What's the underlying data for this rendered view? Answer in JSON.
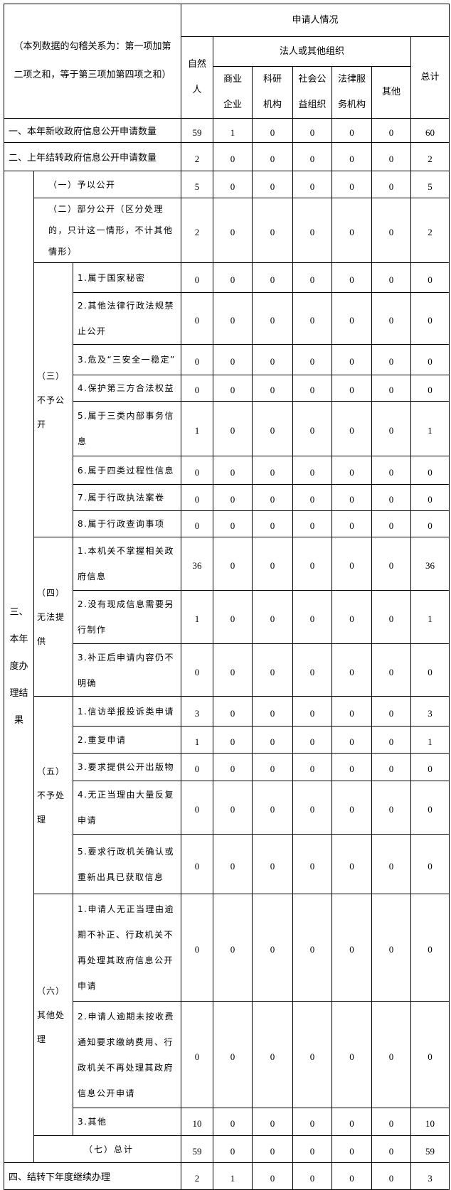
{
  "header": {
    "note": "（本列数据的勾稽关系为：第一项加第二项之和，等于第三项加第四项之和）",
    "applicant": "申请人情况",
    "natural_person": "自然人",
    "legal_org": "法人或其他组织",
    "total": "总计",
    "org_types": [
      "商业企业",
      "科研机构",
      "社会公益组织",
      "法律服务机构",
      "其他"
    ]
  },
  "row1": {
    "label": "一、本年新收政府信息公开申请数量",
    "values": [
      59,
      1,
      0,
      0,
      0,
      0,
      60
    ]
  },
  "row2": {
    "label": "二、上年结转政府信息公开申请数量",
    "values": [
      2,
      0,
      0,
      0,
      0,
      0,
      2
    ]
  },
  "section3": {
    "label": "三、本年度办理结果",
    "groups": [
      {
        "label": "（一）予以公开",
        "values": [
          5,
          0,
          0,
          0,
          0,
          0,
          5
        ]
      },
      {
        "label": "（二）部分公开（区分处理的，只计这一情形，不计其他情形）",
        "values": [
          2,
          0,
          0,
          0,
          0,
          0,
          2
        ]
      },
      {
        "label": "（三）不予公开",
        "items": [
          {
            "label": "1.属于国家秘密",
            "values": [
              0,
              0,
              0,
              0,
              0,
              0,
              0
            ]
          },
          {
            "label": "2.其他法律行政法规禁止公开",
            "values": [
              0,
              0,
              0,
              0,
              0,
              0,
              0
            ]
          },
          {
            "label": "3.危及“三安全一稳定”",
            "values": [
              0,
              0,
              0,
              0,
              0,
              0,
              0
            ]
          },
          {
            "label": "4.保护第三方合法权益",
            "values": [
              0,
              0,
              0,
              0,
              0,
              0,
              0
            ]
          },
          {
            "label": "5.属于三类内部事务信息",
            "values": [
              1,
              0,
              0,
              0,
              0,
              0,
              1
            ]
          },
          {
            "label": "6.属于四类过程性信息",
            "values": [
              0,
              0,
              0,
              0,
              0,
              0,
              0
            ]
          },
          {
            "label": "7.属于行政执法案卷",
            "values": [
              0,
              0,
              0,
              0,
              0,
              0,
              0
            ]
          },
          {
            "label": "8.属于行政查询事项",
            "values": [
              0,
              0,
              0,
              0,
              0,
              0,
              0
            ]
          }
        ]
      },
      {
        "label": "（四）无法提供",
        "items": [
          {
            "label": "1.本机关不掌握相关政府信息",
            "values": [
              36,
              0,
              0,
              0,
              0,
              0,
              36
            ]
          },
          {
            "label": "2.没有现成信息需要另行制作",
            "values": [
              1,
              0,
              0,
              0,
              0,
              0,
              1
            ]
          },
          {
            "label": "3.补正后申请内容仍不明确",
            "values": [
              0,
              0,
              0,
              0,
              0,
              0,
              0
            ]
          }
        ]
      },
      {
        "label": "（五）不予处理",
        "items": [
          {
            "label": "1.信访举报投诉类申请",
            "values": [
              3,
              0,
              0,
              0,
              0,
              0,
              3
            ]
          },
          {
            "label": "2.重复申请",
            "values": [
              1,
              0,
              0,
              0,
              0,
              0,
              1
            ]
          },
          {
            "label": "3.要求提供公开出版物",
            "values": [
              0,
              0,
              0,
              0,
              0,
              0,
              0
            ]
          },
          {
            "label": "4.无正当理由大量反复申请",
            "values": [
              0,
              0,
              0,
              0,
              0,
              0,
              0
            ]
          },
          {
            "label": "5.要求行政机关确认或重新出具已获取信息",
            "values": [
              0,
              0,
              0,
              0,
              0,
              0,
              0
            ]
          }
        ]
      },
      {
        "label": "（六）其他处理",
        "items": [
          {
            "label": "1.申请人无正当理由逾期不补正、行政机关不再处理其政府信息公开申请",
            "values": [
              0,
              0,
              0,
              0,
              0,
              0,
              0
            ]
          },
          {
            "label": "2.申请人逾期未按收费通知要求缴纳费用、行政机关不再处理其政府信息公开申请",
            "values": [
              0,
              0,
              0,
              0,
              0,
              0,
              0
            ]
          },
          {
            "label": "3.其他",
            "values": [
              10,
              0,
              0,
              0,
              0,
              0,
              10
            ]
          }
        ]
      },
      {
        "label": "（七）总计",
        "values": [
          59,
          0,
          0,
          0,
          0,
          0,
          59
        ]
      }
    ]
  },
  "row4": {
    "label": "四、结转下年度继续办理",
    "values": [
      2,
      1,
      0,
      0,
      0,
      0,
      3
    ]
  }
}
